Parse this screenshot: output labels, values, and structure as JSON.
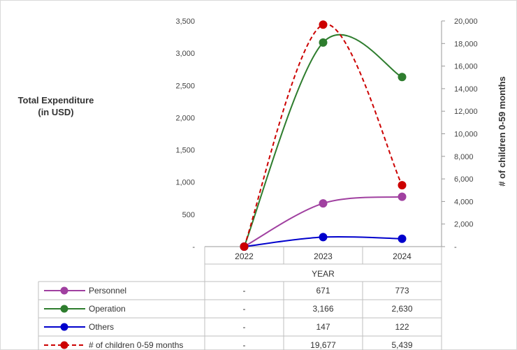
{
  "chart_data": {
    "type": "line",
    "ylabel": "Total Expenditure\n(in USD)",
    "y2label": "# of children 0-59 months",
    "xlabel": "YEAR",
    "categories": [
      "2022",
      "2023",
      "2024"
    ],
    "ylim": [
      0,
      3500
    ],
    "y2lim": [
      0,
      20000
    ],
    "yticks": [
      "-",
      "500",
      "1,000",
      "1,500",
      "2,000",
      "2,500",
      "3,000",
      "3,500"
    ],
    "y2ticks": [
      "-",
      "2,000",
      "4,000",
      "6,000",
      "8,000",
      "10,000",
      "12,000",
      "14,000",
      "16,000",
      "18,000",
      "20,000"
    ],
    "grid": false,
    "series": [
      {
        "name": "Personnel",
        "axis": "left",
        "color": "#a040a0",
        "dashed": false,
        "values": [
          0,
          671,
          773
        ],
        "labels": [
          "-",
          "671",
          "773"
        ]
      },
      {
        "name": "Operation",
        "axis": "left",
        "color": "#2e7d2e",
        "dashed": false,
        "values": [
          0,
          3166,
          2630
        ],
        "labels": [
          "-",
          "3,166",
          "2,630"
        ]
      },
      {
        "name": "Others",
        "axis": "left",
        "color": "#0000cc",
        "dashed": false,
        "values": [
          0,
          147,
          122
        ],
        "labels": [
          "-",
          "147",
          "122"
        ]
      },
      {
        "name": "# of children 0-59 months",
        "axis": "right",
        "color": "#cc0000",
        "dashed": true,
        "values": [
          0,
          19677,
          5439
        ],
        "labels": [
          "-",
          "19,677",
          "5,439"
        ]
      }
    ]
  }
}
